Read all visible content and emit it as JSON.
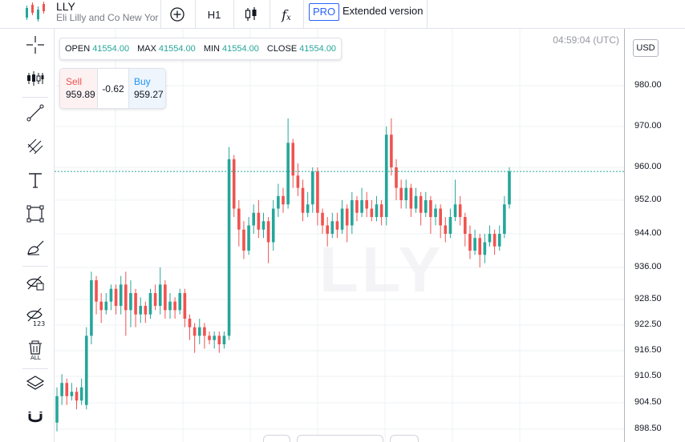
{
  "header": {
    "symbol": "LLY",
    "company": "Eli Lilly and Co New York",
    "interval": "H1",
    "pro_badge": "PRO",
    "extended_label": "Extended version",
    "fx_label": "f",
    "fx_sub": "x"
  },
  "ohlc": {
    "open_label": "OPEN",
    "open_value": "41554.00",
    "max_label": "MAX",
    "max_value": "41554.00",
    "min_label": "MIN",
    "min_value": "41554.00",
    "close_label": "CLOSE",
    "close_value": "41554.00"
  },
  "trade": {
    "sell_label": "Sell",
    "sell_price": "959.89",
    "spread": "-0.62",
    "buy_label": "Buy",
    "buy_price": "959.27"
  },
  "clock": "04:59:04 (UTC)",
  "currency": "USD",
  "watermark": "LLY",
  "colors": {
    "up": "#26a69a",
    "down": "#ef5350",
    "price_line": "#26a69a"
  },
  "left_tools": [
    "crosshair-icon",
    "indicators-icon",
    "trend-line-icon",
    "fib-icon",
    "text-icon",
    "rectangle-icon",
    "brush-icon",
    "hide-drawings-icon",
    "hide-indicators-icon",
    "delete-all-icon",
    "layers-icon",
    "magnet-icon"
  ],
  "chart_data": {
    "type": "candlestick",
    "y_ticks": [
      "980.00",
      "970.00",
      "960.00",
      "952.00",
      "944.00",
      "936.00",
      "928.50",
      "922.50",
      "916.50",
      "910.50",
      "904.50",
      "898.50"
    ],
    "current_price": 959.0,
    "candles": [
      {
        "o": 900,
        "c": 906,
        "h": 908,
        "l": 898
      },
      {
        "o": 906,
        "c": 909,
        "h": 911,
        "l": 904
      },
      {
        "o": 909,
        "c": 906,
        "h": 910,
        "l": 904
      },
      {
        "o": 906,
        "c": 907,
        "h": 909,
        "l": 905
      },
      {
        "o": 907,
        "c": 905,
        "h": 908,
        "l": 903
      },
      {
        "o": 905,
        "c": 908,
        "h": 910,
        "l": 904
      },
      {
        "o": 904,
        "c": 920,
        "h": 922,
        "l": 903
      },
      {
        "o": 920,
        "c": 933,
        "h": 935,
        "l": 918
      },
      {
        "o": 933,
        "c": 928,
        "h": 934,
        "l": 925
      },
      {
        "o": 928,
        "c": 926,
        "h": 930,
        "l": 923
      },
      {
        "o": 926,
        "c": 928,
        "h": 930,
        "l": 925
      },
      {
        "o": 928,
        "c": 931,
        "h": 932,
        "l": 926
      },
      {
        "o": 931,
        "c": 927,
        "h": 932,
        "l": 925
      },
      {
        "o": 927,
        "c": 932,
        "h": 934,
        "l": 925
      },
      {
        "o": 932,
        "c": 926,
        "h": 935,
        "l": 920
      },
      {
        "o": 926,
        "c": 930,
        "h": 933,
        "l": 922
      },
      {
        "o": 930,
        "c": 925,
        "h": 931,
        "l": 922
      },
      {
        "o": 925,
        "c": 927,
        "h": 929,
        "l": 923
      },
      {
        "o": 927,
        "c": 925,
        "h": 928,
        "l": 923
      },
      {
        "o": 925,
        "c": 930,
        "h": 931,
        "l": 924
      },
      {
        "o": 930,
        "c": 927,
        "h": 932,
        "l": 926
      },
      {
        "o": 927,
        "c": 932,
        "h": 936,
        "l": 925
      },
      {
        "o": 932,
        "c": 926,
        "h": 933,
        "l": 924
      },
      {
        "o": 926,
        "c": 928,
        "h": 930,
        "l": 924
      },
      {
        "o": 928,
        "c": 926,
        "h": 929,
        "l": 924
      },
      {
        "o": 926,
        "c": 930,
        "h": 931,
        "l": 925
      },
      {
        "o": 930,
        "c": 924,
        "h": 931,
        "l": 922
      },
      {
        "o": 924,
        "c": 922,
        "h": 925,
        "l": 919
      },
      {
        "o": 922,
        "c": 920,
        "h": 923,
        "l": 916
      },
      {
        "o": 920,
        "c": 922,
        "h": 924,
        "l": 918
      },
      {
        "o": 922,
        "c": 920,
        "h": 923,
        "l": 917
      },
      {
        "o": 920,
        "c": 919,
        "h": 921,
        "l": 918
      },
      {
        "o": 919,
        "c": 920,
        "h": 921,
        "l": 917
      },
      {
        "o": 920,
        "c": 918,
        "h": 921,
        "l": 916
      },
      {
        "o": 918,
        "c": 920,
        "h": 921,
        "l": 917
      },
      {
        "o": 920,
        "c": 962,
        "h": 965,
        "l": 919
      },
      {
        "o": 962,
        "c": 950,
        "h": 963,
        "l": 948
      },
      {
        "o": 950,
        "c": 945,
        "h": 952,
        "l": 941
      },
      {
        "o": 945,
        "c": 940,
        "h": 947,
        "l": 938
      },
      {
        "o": 940,
        "c": 946,
        "h": 948,
        "l": 939
      },
      {
        "o": 946,
        "c": 949,
        "h": 951,
        "l": 944
      },
      {
        "o": 949,
        "c": 945,
        "h": 952,
        "l": 943
      },
      {
        "o": 945,
        "c": 947,
        "h": 949,
        "l": 943
      },
      {
        "o": 947,
        "c": 942,
        "h": 948,
        "l": 937
      },
      {
        "o": 942,
        "c": 950,
        "h": 952,
        "l": 940
      },
      {
        "o": 950,
        "c": 953,
        "h": 956,
        "l": 948
      },
      {
        "o": 953,
        "c": 951,
        "h": 955,
        "l": 949
      },
      {
        "o": 951,
        "c": 966,
        "h": 972,
        "l": 950
      },
      {
        "o": 966,
        "c": 958,
        "h": 967,
        "l": 955
      },
      {
        "o": 958,
        "c": 955,
        "h": 961,
        "l": 953
      },
      {
        "o": 955,
        "c": 949,
        "h": 957,
        "l": 947
      },
      {
        "o": 949,
        "c": 951,
        "h": 954,
        "l": 948
      },
      {
        "o": 951,
        "c": 959,
        "h": 960,
        "l": 949
      },
      {
        "o": 959,
        "c": 949,
        "h": 960,
        "l": 946
      },
      {
        "o": 949,
        "c": 946,
        "h": 950,
        "l": 944
      },
      {
        "o": 946,
        "c": 944,
        "h": 948,
        "l": 941
      },
      {
        "o": 944,
        "c": 947,
        "h": 949,
        "l": 943
      },
      {
        "o": 947,
        "c": 945,
        "h": 949,
        "l": 943
      },
      {
        "o": 945,
        "c": 950,
        "h": 952,
        "l": 944
      },
      {
        "o": 950,
        "c": 946,
        "h": 951,
        "l": 942
      },
      {
        "o": 946,
        "c": 952,
        "h": 954,
        "l": 944
      },
      {
        "o": 952,
        "c": 949,
        "h": 953,
        "l": 947
      },
      {
        "o": 949,
        "c": 952,
        "h": 955,
        "l": 948
      },
      {
        "o": 952,
        "c": 950,
        "h": 954,
        "l": 948
      },
      {
        "o": 950,
        "c": 948,
        "h": 952,
        "l": 947
      },
      {
        "o": 948,
        "c": 951,
        "h": 953,
        "l": 947
      },
      {
        "o": 951,
        "c": 948,
        "h": 952,
        "l": 946
      },
      {
        "o": 948,
        "c": 968,
        "h": 970,
        "l": 946
      },
      {
        "o": 968,
        "c": 960,
        "h": 972,
        "l": 958
      },
      {
        "o": 960,
        "c": 955,
        "h": 962,
        "l": 952
      },
      {
        "o": 955,
        "c": 952,
        "h": 957,
        "l": 950
      },
      {
        "o": 952,
        "c": 955,
        "h": 957,
        "l": 950
      },
      {
        "o": 955,
        "c": 950,
        "h": 956,
        "l": 948
      },
      {
        "o": 950,
        "c": 953,
        "h": 955,
        "l": 949
      },
      {
        "o": 953,
        "c": 949,
        "h": 954,
        "l": 946
      },
      {
        "o": 949,
        "c": 952,
        "h": 954,
        "l": 948
      },
      {
        "o": 952,
        "c": 948,
        "h": 953,
        "l": 944
      },
      {
        "o": 948,
        "c": 950,
        "h": 951,
        "l": 946
      },
      {
        "o": 950,
        "c": 946,
        "h": 951,
        "l": 943
      },
      {
        "o": 946,
        "c": 944,
        "h": 948,
        "l": 942
      },
      {
        "o": 944,
        "c": 948,
        "h": 950,
        "l": 943
      },
      {
        "o": 948,
        "c": 951,
        "h": 957,
        "l": 947
      },
      {
        "o": 951,
        "c": 948,
        "h": 953,
        "l": 946
      },
      {
        "o": 948,
        "c": 944,
        "h": 949,
        "l": 941
      },
      {
        "o": 944,
        "c": 940,
        "h": 946,
        "l": 938
      },
      {
        "o": 940,
        "c": 943,
        "h": 945,
        "l": 939
      },
      {
        "o": 943,
        "c": 939,
        "h": 944,
        "l": 936
      },
      {
        "o": 939,
        "c": 942,
        "h": 944,
        "l": 937
      },
      {
        "o": 942,
        "c": 944,
        "h": 946,
        "l": 941
      },
      {
        "o": 944,
        "c": 941,
        "h": 945,
        "l": 939
      },
      {
        "o": 941,
        "c": 944,
        "h": 946,
        "l": 940
      },
      {
        "o": 944,
        "c": 951,
        "h": 953,
        "l": 943
      },
      {
        "o": 951,
        "c": 959,
        "h": 960,
        "l": 950
      }
    ]
  }
}
